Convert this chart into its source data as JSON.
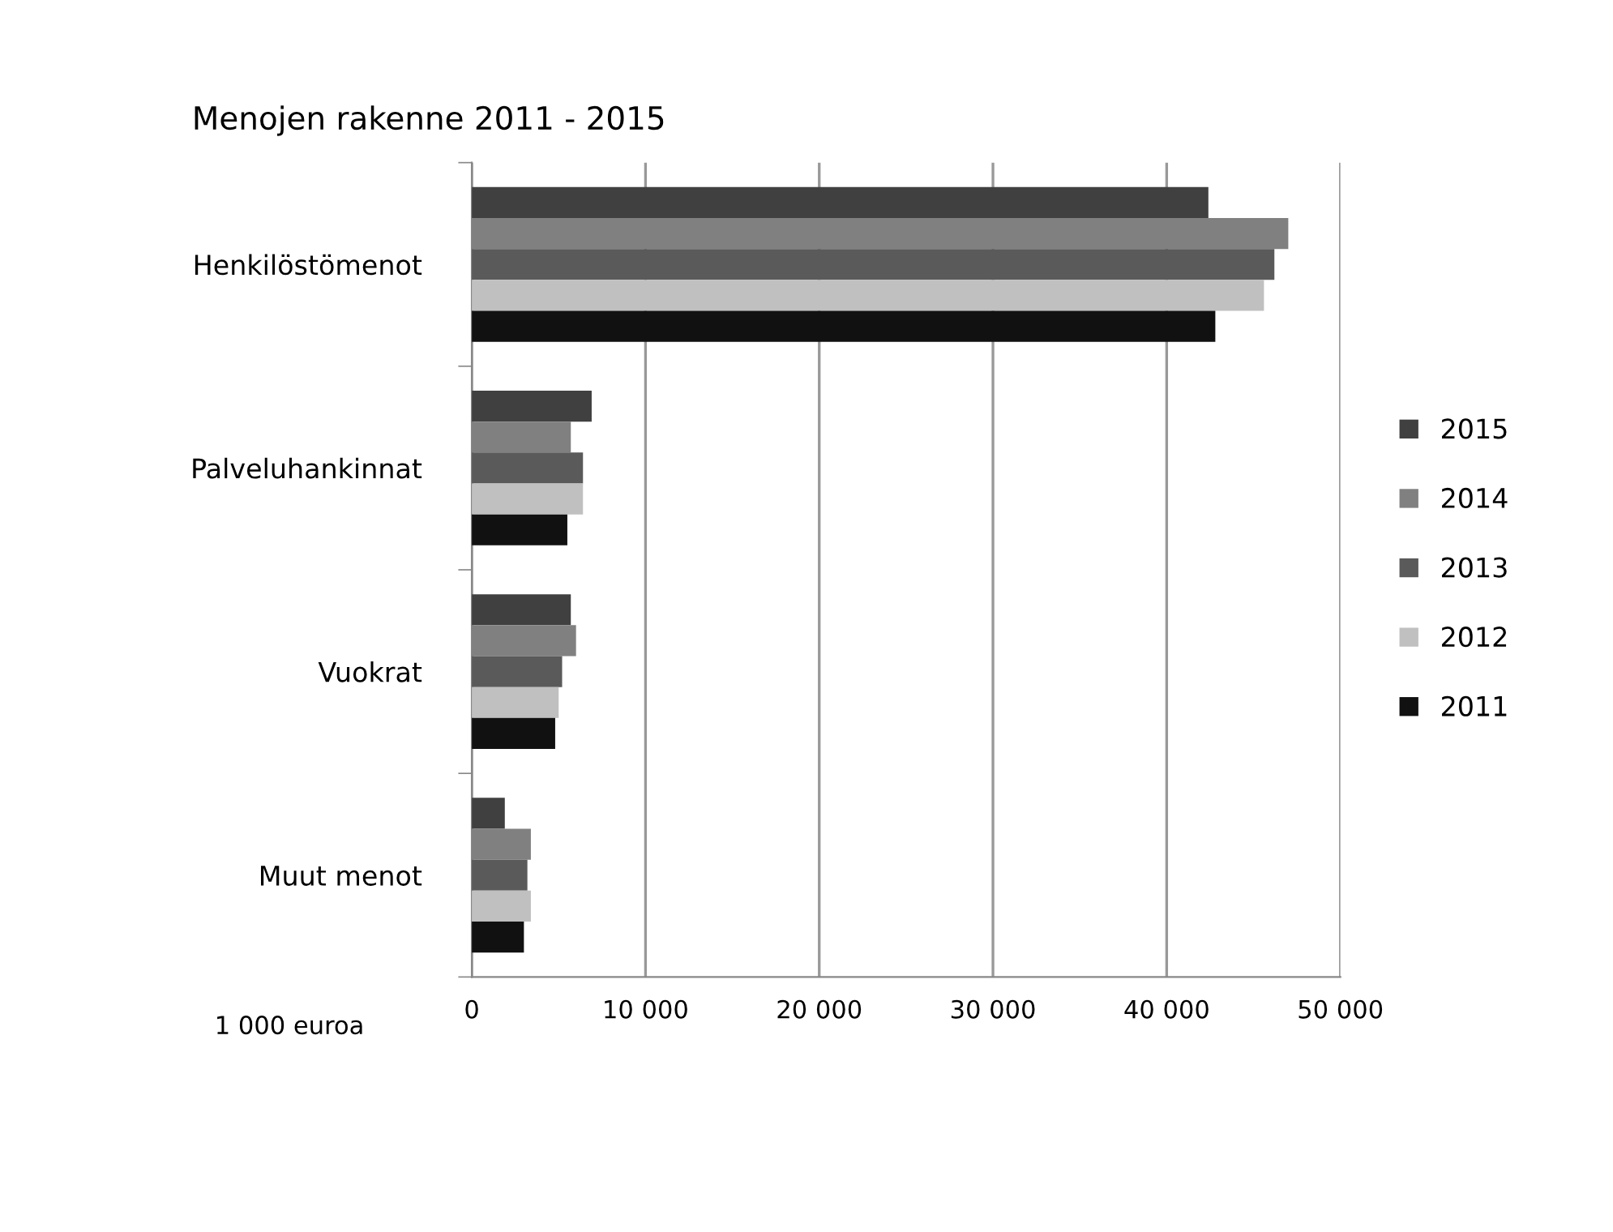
{
  "chart_data": {
    "type": "bar",
    "orientation": "horizontal",
    "title": "Menojen rakenne 2011 - 2015",
    "xlabel": "1 000 euroa",
    "categories": [
      "Henkilöstömenot",
      "Palveluhankinnat",
      "Vuokrat",
      "Muut menot"
    ],
    "series": [
      {
        "name": "2015",
        "color": "#404040",
        "values": [
          42400,
          6900,
          5700,
          1900
        ]
      },
      {
        "name": "2014",
        "color": "#808080",
        "values": [
          47000,
          5700,
          6000,
          3400
        ]
      },
      {
        "name": "2013",
        "color": "#5a5a5a",
        "values": [
          46200,
          6400,
          5200,
          3200
        ]
      },
      {
        "name": "2012",
        "color": "#c0c0c0",
        "values": [
          45600,
          6400,
          5000,
          3400
        ]
      },
      {
        "name": "2011",
        "color": "#111111",
        "values": [
          42800,
          5500,
          4800,
          3000
        ]
      }
    ],
    "xlim": [
      0,
      50000
    ],
    "xticks": [
      {
        "value": 0,
        "label": "0"
      },
      {
        "value": 10000,
        "label": "10 000"
      },
      {
        "value": 20000,
        "label": "20 000"
      },
      {
        "value": 30000,
        "label": "30 000"
      },
      {
        "value": 40000,
        "label": "40 000"
      },
      {
        "value": 50000,
        "label": "50 000"
      }
    ],
    "grid": "x",
    "legend": "right"
  }
}
